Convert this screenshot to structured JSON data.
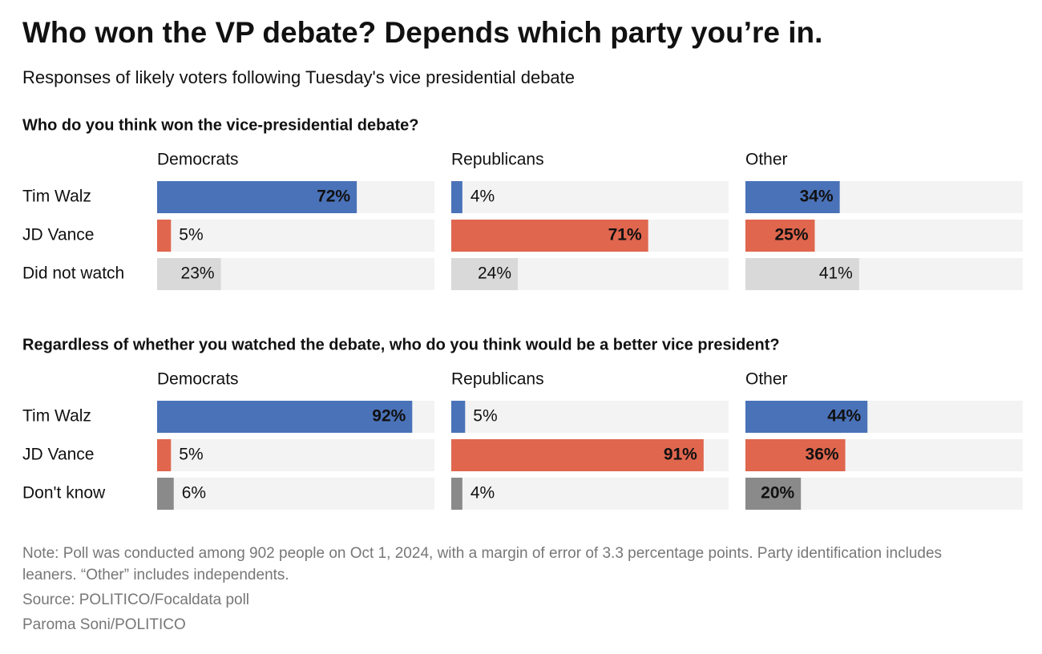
{
  "title": "Who won the VP debate? Depends which party you’re in.",
  "subtitle": "Responses of likely voters following Tuesday's vice presidential debate",
  "notes": [
    "Note: Poll was conducted among 902 people on Oct 1, 2024, with a margin of error of 3.3 percentage points. Party identification includes leaners. “Other” includes independents.",
    "Source: POLITICO/Focaldata poll",
    "Paroma Soni/POLITICO"
  ],
  "chart_data": [
    {
      "type": "bar",
      "title": "Who do you think won the vice-presidential debate?",
      "categories": [
        "Tim Walz",
        "JD Vance",
        "Did not watch"
      ],
      "colors": [
        "#4a72b8",
        "#e0664e",
        "#d9d9d9"
      ],
      "xlim": [
        0,
        100
      ],
      "facets": [
        {
          "name": "Democrats",
          "values": [
            72,
            5,
            23
          ],
          "value_labels": [
            "72%",
            "5%",
            "23%"
          ]
        },
        {
          "name": "Republicans",
          "values": [
            4,
            71,
            24
          ],
          "value_labels": [
            "4%",
            "71%",
            "24%"
          ]
        },
        {
          "name": "Other",
          "values": [
            34,
            25,
            41
          ],
          "value_labels": [
            "34%",
            "25%",
            "41%"
          ]
        }
      ]
    },
    {
      "type": "bar",
      "title": "Regardless of whether you watched the debate, who do you think would be a better vice president?",
      "categories": [
        "Tim Walz",
        "JD Vance",
        "Don't know"
      ],
      "colors": [
        "#4a72b8",
        "#e0664e",
        "#8a8a8a"
      ],
      "xlim": [
        0,
        100
      ],
      "facets": [
        {
          "name": "Democrats",
          "values": [
            92,
            5,
            6
          ],
          "value_labels": [
            "92%",
            "5%",
            "6%"
          ]
        },
        {
          "name": "Republicans",
          "values": [
            5,
            91,
            4
          ],
          "value_labels": [
            "5%",
            "91%",
            "4%"
          ]
        },
        {
          "name": "Other",
          "values": [
            44,
            36,
            20
          ],
          "value_labels": [
            "44%",
            "36%",
            "20%"
          ]
        }
      ]
    }
  ]
}
